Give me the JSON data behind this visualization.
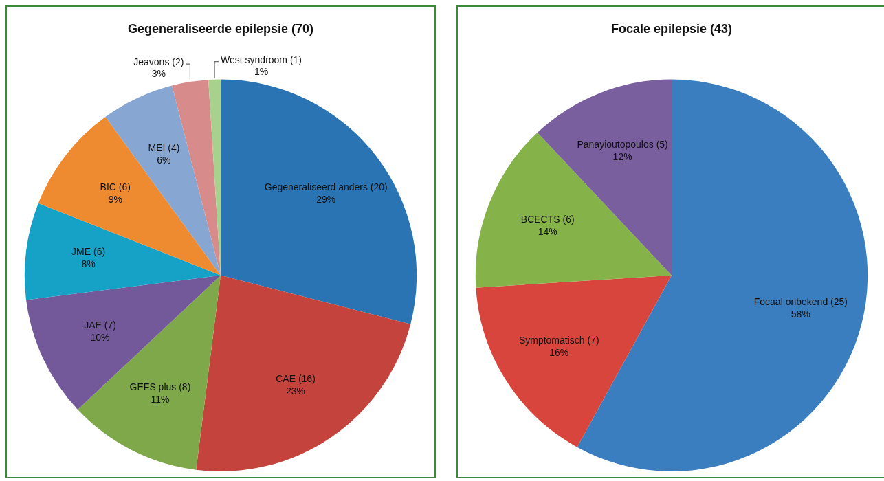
{
  "chart_data": [
    {
      "type": "pie",
      "title": "Gegeneraliseerde epilepsie (70)",
      "categories": [
        "Gegeneraliseerd anders (20)",
        "CAE (16)",
        "GEFS plus (8)",
        "JAE (7)",
        "JME (6)",
        "BIC (6)",
        "MEI (4)",
        "Jeavons (2)",
        "West syndroom (1)"
      ],
      "values": [
        29,
        23,
        11,
        10,
        8,
        9,
        6,
        3,
        1
      ],
      "value_labels": [
        "29%",
        "23%",
        "11%",
        "10%",
        "8%",
        "9%",
        "6%",
        "3%",
        "1%"
      ],
      "colors": [
        "#2b74b4",
        "#c4433c",
        "#7ea84a",
        "#73599a",
        "#16a2c6",
        "#ee8a2f",
        "#87a7d2",
        "#d88b8b",
        "#a9d18e"
      ]
    },
    {
      "type": "pie",
      "title": "Focale epilepsie (43)",
      "categories": [
        "Focaal onbekend (25)",
        "Symptomatisch (7)",
        "BCECTS (6)",
        "Panayioutopoulos (5)"
      ],
      "values": [
        58,
        16,
        14,
        12
      ],
      "value_labels": [
        "58%",
        "16%",
        "14%",
        "12%"
      ],
      "colors": [
        "#3a7ebf",
        "#d8453d",
        "#86b24a",
        "#7a5f9f"
      ]
    }
  ]
}
